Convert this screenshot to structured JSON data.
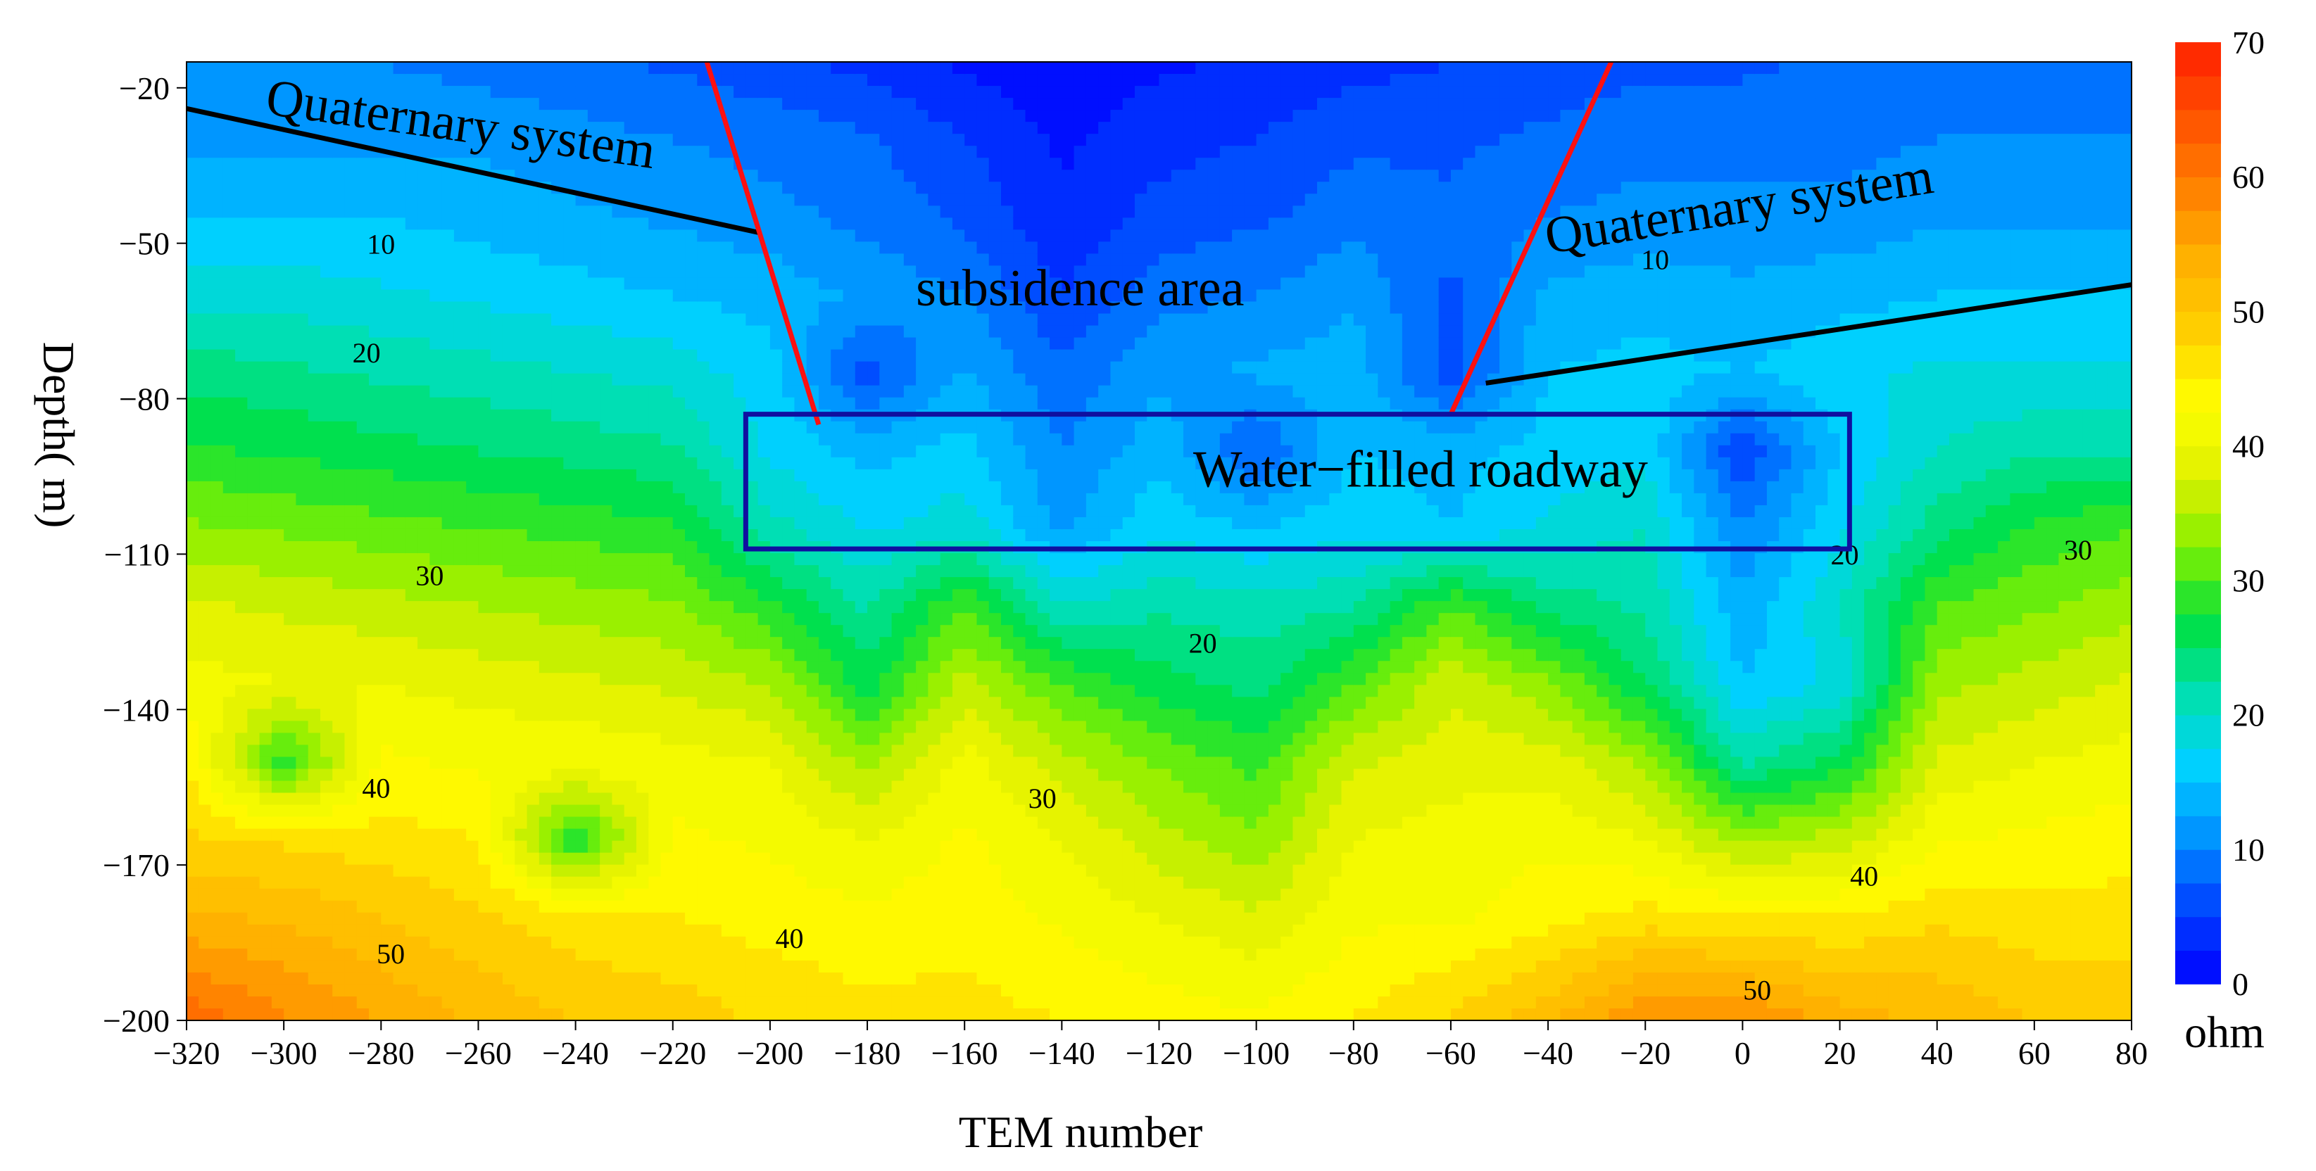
{
  "chart_data": {
    "type": "heatmap",
    "xlabel": "TEM number",
    "ylabel": "Depth( m)",
    "xlim": [
      -320,
      80
    ],
    "ylim": [
      -200,
      -15
    ],
    "x_ticks": [
      "−320",
      "−300",
      "−280",
      "−260",
      "−240",
      "−220",
      "−200",
      "−180",
      "−160",
      "−140",
      "−120",
      "−100",
      "−80",
      "−60",
      "−40",
      "−20",
      "0",
      "20",
      "40",
      "60",
      "80"
    ],
    "x_tick_values": [
      -320,
      -300,
      -280,
      -260,
      -240,
      -220,
      -200,
      -180,
      -160,
      -140,
      -120,
      -100,
      -80,
      -60,
      -40,
      -20,
      0,
      20,
      40,
      60,
      80
    ],
    "y_ticks": [
      "−20",
      "−50",
      "−80",
      "−110",
      "−140",
      "−170",
      "−200"
    ],
    "y_tick_values": [
      -20,
      -50,
      -80,
      -110,
      -140,
      -170,
      -200
    ],
    "colorbar": {
      "unit": "ohm",
      "min": 0,
      "max": 70,
      "tick_labels": [
        "0",
        "10",
        "20",
        "30",
        "40",
        "50",
        "60",
        "70"
      ],
      "tick_values": [
        0,
        10,
        20,
        30,
        40,
        50,
        60,
        70
      ],
      "palette": [
        "#0000ff",
        "#0040ff",
        "#0090ff",
        "#00d0ff",
        "#00e0b0",
        "#00e040",
        "#80f000",
        "#e0f000",
        "#ffff00",
        "#ffd000",
        "#ffb000",
        "#ff8000",
        "#ff5000",
        "#ff2000"
      ]
    },
    "x": [
      -320,
      -300,
      -280,
      -260,
      -240,
      -220,
      -200,
      -180,
      -160,
      -140,
      -120,
      -100,
      -80,
      -60,
      -40,
      -20,
      0,
      20,
      40,
      60,
      80
    ],
    "depth": [
      -15,
      -30,
      -45,
      -60,
      -75,
      -90,
      -105,
      -120,
      -135,
      -150,
      -165,
      -180,
      -200
    ],
    "resistivity": [
      [
        10,
        10,
        10,
        9,
        8,
        7,
        6,
        4,
        2,
        1,
        2,
        3,
        4,
        5,
        6,
        7,
        7,
        8,
        8,
        8,
        8
      ],
      [
        12,
        12,
        12,
        12,
        11,
        10,
        9,
        8,
        5,
        2,
        4,
        5,
        7,
        7,
        8,
        9,
        9,
        9,
        10,
        10,
        10
      ],
      [
        15,
        15,
        15,
        14,
        13,
        12,
        11,
        9,
        7,
        3,
        6,
        7,
        9,
        8,
        10,
        11,
        11,
        11,
        12,
        12,
        12
      ],
      [
        19,
        19,
        18,
        17,
        16,
        15,
        14,
        12,
        10,
        5,
        9,
        10,
        12,
        7,
        13,
        14,
        13,
        14,
        15,
        15,
        15
      ],
      [
        24,
        23,
        22,
        21,
        20,
        19,
        16,
        6,
        13,
        8,
        12,
        13,
        14,
        6,
        15,
        16,
        15,
        17,
        18,
        18,
        18
      ],
      [
        28,
        27,
        26,
        25,
        24,
        23,
        17,
        14,
        16,
        10,
        14,
        7,
        15,
        14,
        16,
        17,
        5,
        15,
        20,
        22,
        22
      ],
      [
        33,
        32,
        31,
        30,
        29,
        28,
        21,
        17,
        19,
        12,
        17,
        15,
        17,
        15,
        18,
        20,
        10,
        17,
        24,
        28,
        30
      ],
      [
        38,
        37,
        36,
        35,
        34,
        33,
        28,
        22,
        30,
        20,
        22,
        21,
        22,
        30,
        24,
        22,
        13,
        20,
        30,
        32,
        34
      ],
      [
        41,
        40,
        40,
        39,
        38,
        37,
        35,
        26,
        36,
        30,
        26,
        24,
        30,
        37,
        33,
        25,
        15,
        18,
        34,
        36,
        38
      ],
      [
        45,
        28,
        43,
        42,
        42,
        41,
        40,
        34,
        41,
        36,
        32,
        29,
        37,
        39,
        39,
        34,
        22,
        26,
        38,
        40,
        41
      ],
      [
        48,
        47,
        46,
        45,
        27,
        43,
        42,
        40,
        43,
        40,
        36,
        33,
        40,
        41,
        42,
        40,
        34,
        36,
        42,
        43,
        44
      ],
      [
        53,
        52,
        50,
        48,
        46,
        45,
        44,
        43,
        44,
        42,
        40,
        38,
        42,
        42,
        44,
        46,
        45,
        45,
        47,
        46,
        46
      ],
      [
        62,
        58,
        55,
        52,
        50,
        49,
        47,
        46,
        46,
        45,
        44,
        43,
        45,
        48,
        52,
        58,
        58,
        54,
        52,
        50,
        50
      ]
    ],
    "contour_labels": [
      {
        "text": "10",
        "x": -280,
        "y": -52
      },
      {
        "text": "20",
        "x": -283,
        "y": -73
      },
      {
        "text": "30",
        "x": -270,
        "y": -116
      },
      {
        "text": "40",
        "x": -281,
        "y": -157
      },
      {
        "text": "50",
        "x": -278,
        "y": -189
      },
      {
        "text": "10",
        "x": -18,
        "y": -55
      },
      {
        "text": "20",
        "x": 21,
        "y": -112
      },
      {
        "text": "30",
        "x": 69,
        "y": -111
      },
      {
        "text": "20",
        "x": -111,
        "y": -129
      },
      {
        "text": "30",
        "x": -144,
        "y": -159
      },
      {
        "text": "40",
        "x": -196,
        "y": -186
      },
      {
        "text": "40",
        "x": 25,
        "y": -174
      },
      {
        "text": "50",
        "x": 3,
        "y": -196
      }
    ],
    "annotations": [
      {
        "text": "Quaternary system",
        "x": -304,
        "y": -25,
        "rotate": 8
      },
      {
        "text": "subsidence area",
        "x": -170,
        "y": -62,
        "rotate": 0
      },
      {
        "text": "Quaternary system",
        "x": -40,
        "y": -52,
        "rotate": -9
      },
      {
        "text": "Water−filled roadway",
        "x": -113,
        "y": -97,
        "rotate": 0
      }
    ],
    "quaternary_lines": [
      {
        "x": [
          -320,
          -202
        ],
        "y": [
          -24,
          -48
        ]
      },
      {
        "x": -52.8,
        "x2": 80,
        "y": -77,
        "y2": -58
      }
    ],
    "boundary_lines": [
      {
        "x": [
          -213,
          -190
        ],
        "y": [
          -15,
          -85
        ]
      },
      {
        "x": [
          -27,
          -60
        ],
        "y": [
          -15,
          -83
        ]
      }
    ],
    "roadway_box": {
      "x": [
        -205,
        22
      ],
      "y": [
        -83,
        -109
      ]
    }
  }
}
